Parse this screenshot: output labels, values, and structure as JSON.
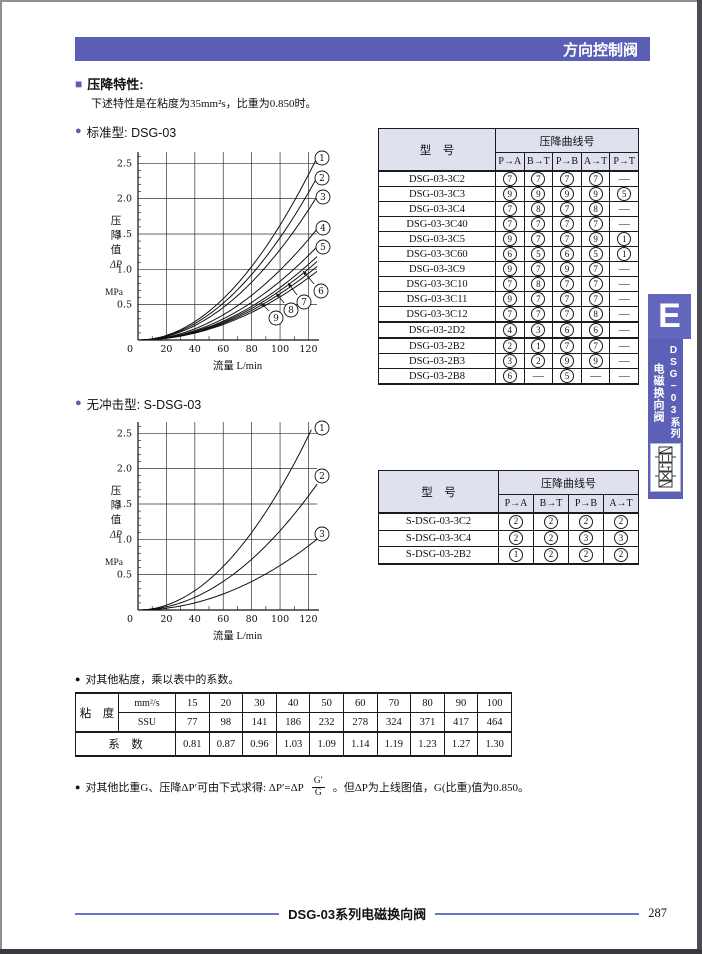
{
  "banner": {
    "title": "方向控制阀",
    "color": "#5a5fb5"
  },
  "bullets": {
    "square": "■",
    "dot": "●"
  },
  "intro": {
    "heading": "压降特性:",
    "note": "下述特性是在粘度为35mm²s，比重为0.850时。"
  },
  "charts_section": {
    "standard_label": "标准型: DSG-03",
    "shockless_label": "无冲击型: S-DSG-03"
  },
  "chart_data": [
    {
      "type": "line",
      "title": "标准型: DSG-03",
      "xlabel": "流量 L/min",
      "ylabel": "压降值 ΔP",
      "ylabel_chars": [
        "压",
        "降",
        "值",
        "ΔP"
      ],
      "yunit": "MPa",
      "xlim": [
        0,
        126
      ],
      "ylim": [
        0,
        2.66
      ],
      "xticks": [
        0,
        20,
        40,
        60,
        80,
        100,
        120
      ],
      "yticks": [
        0.5,
        1,
        1.5,
        2,
        2.5
      ],
      "grid": true,
      "curve_model": "dp = dp_end × (q/q_end)^2",
      "series": [
        {
          "name": "1",
          "q_end": 126,
          "dp_end": 2.58,
          "circle": [
            227,
            20
          ]
        },
        {
          "name": "2",
          "q_end": 126,
          "dp_end": 2.3,
          "circle": [
            227,
            40
          ]
        },
        {
          "name": "3",
          "q_end": 126,
          "dp_end": 2.03,
          "circle": [
            228,
            59
          ]
        },
        {
          "name": "4",
          "q_end": 126,
          "dp_end": 1.57,
          "circle": [
            228,
            90
          ]
        },
        {
          "name": "5",
          "q_end": 126,
          "dp_end": 1.32,
          "circle": [
            228,
            109
          ]
        },
        {
          "name": "6",
          "q_end": 126,
          "dp_end": 1.18,
          "circle": [
            226,
            153
          ],
          "arrow": [
            219,
            146,
            208,
            133
          ]
        },
        {
          "name": "7",
          "q_end": 126,
          "dp_end": 1.11,
          "circle": [
            209,
            164
          ],
          "arrow": [
            202,
            157,
            193,
            145
          ]
        },
        {
          "name": "8",
          "q_end": 126,
          "dp_end": 1.04,
          "circle": [
            196,
            172
          ],
          "arrow": [
            189,
            165,
            181,
            155
          ]
        },
        {
          "name": "9",
          "q_end": 126,
          "dp_end": 0.97,
          "circle": [
            181,
            180
          ],
          "arrow": [
            174,
            173,
            166,
            165
          ]
        }
      ]
    },
    {
      "type": "line",
      "title": "无冲击型: S-DSG-03",
      "xlabel": "流量 L/min",
      "ylabel": "压降值 ΔP",
      "ylabel_chars": [
        "压",
        "降",
        "值",
        "ΔP"
      ],
      "yunit": "MPa",
      "xlim": [
        0,
        126
      ],
      "ylim": [
        0,
        2.66
      ],
      "xticks": [
        0,
        20,
        40,
        60,
        80,
        100,
        120
      ],
      "yticks": [
        0.5,
        1,
        1.5,
        2,
        2.5
      ],
      "grid": true,
      "curve_model": "dp = dp_end × (q/q_end)^2",
      "series": [
        {
          "name": "1",
          "q_end": 122,
          "dp_end": 2.55,
          "circle": [
            227,
            20
          ]
        },
        {
          "name": "2",
          "q_end": 126,
          "dp_end": 1.78,
          "circle": [
            227,
            68
          ]
        },
        {
          "name": "3",
          "q_end": 126,
          "dp_end": 1.0,
          "circle": [
            227,
            126
          ]
        }
      ]
    }
  ],
  "tables": {
    "standard": {
      "col_model": "型　号",
      "col_group": "压降曲线号",
      "cols": [
        "P→A",
        "B→T",
        "P→B",
        "A→T",
        "P→T"
      ],
      "rows": [
        {
          "model": "DSG-03-3C2",
          "values": [
            "7",
            "7",
            "7",
            "7",
            "-"
          ]
        },
        {
          "model": "DSG-03-3C3",
          "values": [
            "9",
            "9",
            "9",
            "9",
            "5"
          ]
        },
        {
          "model": "DSG-03-3C4",
          "values": [
            "7",
            "8",
            "7",
            "8",
            "-"
          ]
        },
        {
          "model": "DSG-03-3C40",
          "values": [
            "7",
            "7",
            "7",
            "7",
            "-"
          ]
        },
        {
          "model": "DSG-03-3C5",
          "values": [
            "9",
            "7",
            "7",
            "9",
            "1"
          ]
        },
        {
          "model": "DSG-03-3C60",
          "values": [
            "6",
            "5",
            "6",
            "5",
            "1"
          ]
        },
        {
          "model": "DSG-03-3C9",
          "values": [
            "9",
            "7",
            "9",
            "7",
            "-"
          ]
        },
        {
          "model": "DSG-03-3C10",
          "values": [
            "7",
            "8",
            "7",
            "7",
            "-"
          ]
        },
        {
          "model": "DSG-03-3C11",
          "values": [
            "9",
            "7",
            "7",
            "7",
            "-"
          ]
        },
        {
          "model": "DSG-03-3C12",
          "values": [
            "7",
            "7",
            "7",
            "8",
            "-"
          ]
        },
        {
          "model": "DSG-03-2D2",
          "values": [
            "4",
            "3",
            "6",
            "6",
            "-"
          ],
          "thick_top": true
        },
        {
          "model": "DSG-03-2B2",
          "values": [
            "2",
            "1",
            "7",
            "7",
            "-"
          ],
          "thick_top": true
        },
        {
          "model": "DSG-03-2B3",
          "values": [
            "3",
            "2",
            "9",
            "9",
            "-"
          ]
        },
        {
          "model": "DSG-03-2B8",
          "values": [
            "6",
            "-",
            "5",
            "-",
            "-"
          ]
        }
      ]
    },
    "shockless": {
      "col_model": "型　号",
      "col_group": "压降曲线号",
      "cols": [
        "P→A",
        "B→T",
        "P→B",
        "A→T"
      ],
      "rows": [
        {
          "model": "S-DSG-03-3C2",
          "values": [
            "2",
            "2",
            "2",
            "2"
          ]
        },
        {
          "model": "S-DSG-03-3C4",
          "values": [
            "2",
            "2",
            "3",
            "3"
          ]
        },
        {
          "model": "S-DSG-03-2B2",
          "values": [
            "1",
            "2",
            "2",
            "2"
          ]
        }
      ]
    }
  },
  "viscosity": {
    "note": "对其他粘度，乘以表中的系数。",
    "row_header": "粘　度",
    "unit1": "mm²/s",
    "unit2": "SSU",
    "coef_label": "系　数",
    "mm2s": [
      "15",
      "20",
      "30",
      "40",
      "50",
      "60",
      "70",
      "80",
      "90",
      "100"
    ],
    "ssu": [
      "77",
      "98",
      "141",
      "186",
      "232",
      "278",
      "324",
      "371",
      "417",
      "464"
    ],
    "coef": [
      "0.81",
      "0.87",
      "0.96",
      "1.03",
      "1.09",
      "1.14",
      "1.19",
      "1.23",
      "1.27",
      "1.30"
    ]
  },
  "formula": {
    "prefix": "对其他比重G、压降ΔP′可由下式求得: ΔP′=ΔP",
    "frac_num": "G′",
    "frac_den": "G",
    "suffix": "。但ΔP为上线图值，G(比重)值为0.850。"
  },
  "footer": {
    "title": "DSG-03系列电磁换向阀",
    "page_number": "287",
    "line_color": "#6b74c8"
  },
  "sidebar": {
    "tab_letter": "E",
    "series_label": "DSG−03系列",
    "valve_label": "电磁换向阀",
    "icon": "directional-valve-symbol"
  }
}
